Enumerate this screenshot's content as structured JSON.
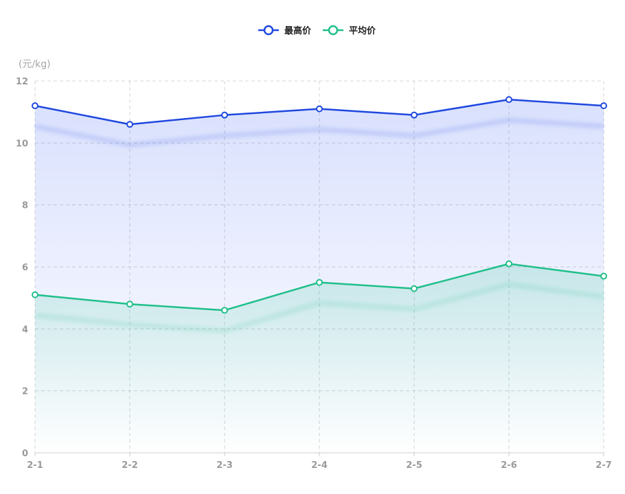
{
  "chart_data": {
    "type": "line",
    "unit_label": "(元/kg)",
    "categories": [
      "2-1",
      "2-2",
      "2-3",
      "2-4",
      "2-5",
      "2-6",
      "2-7"
    ],
    "ylim": [
      0,
      12
    ],
    "yticks": [
      0,
      2,
      4,
      6,
      8,
      10,
      12
    ],
    "grid": true,
    "legend_position": "top-center",
    "series": [
      {
        "name": "最高价",
        "color": "#1f48e0",
        "values": [
          11.2,
          10.6,
          10.9,
          11.1,
          10.9,
          11.4,
          11.2
        ]
      },
      {
        "name": "平均价",
        "color": "#1fbf8a",
        "values": [
          5.1,
          4.8,
          4.6,
          5.5,
          5.3,
          6.1,
          5.7
        ]
      }
    ]
  }
}
